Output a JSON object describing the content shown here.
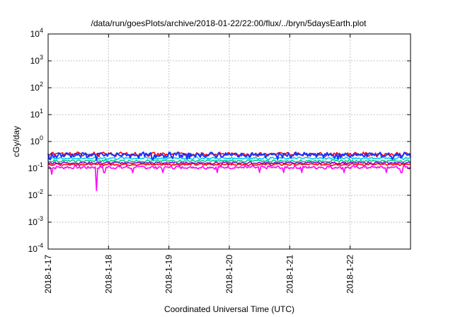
{
  "chart_data": {
    "type": "line",
    "title": "/data/run/goesPlots/archive/2018-01-22/22:00/flux/../bryn/5daysEarth.plot",
    "xlabel": "Coordinated Universal Time (UTC)",
    "ylabel": "cGy/day",
    "x_range_days": [
      "2018-1-17",
      "2018-1-23"
    ],
    "ylim": [
      0.0001,
      10000
    ],
    "yscale": "log",
    "grid": true,
    "legend": "none",
    "x_ticks": [
      "2018-1-17",
      "2018-1-18",
      "2018-1-19",
      "2018-1-20",
      "2018-1-21",
      "2018-1-22"
    ],
    "y_ticks": [
      {
        "base": "10",
        "exp": "4"
      },
      {
        "base": "10",
        "exp": "3"
      },
      {
        "base": "10",
        "exp": "2"
      },
      {
        "base": "10",
        "exp": "1"
      },
      {
        "base": "10",
        "exp": "0"
      },
      {
        "base": "10",
        "exp": "-1"
      },
      {
        "base": "10",
        "exp": "-2"
      },
      {
        "base": "10",
        "exp": "-3"
      },
      {
        "base": "10",
        "exp": "-4"
      }
    ],
    "series": [
      {
        "color": "#ff00ff",
        "base": 0.11,
        "amp": 0.012,
        "dips": [
          [
            0.06,
            0.06
          ],
          [
            0.8,
            0.015
          ],
          [
            0.93,
            0.07
          ],
          [
            1.4,
            0.07
          ],
          [
            1.9,
            0.07
          ],
          [
            2.8,
            0.07
          ],
          [
            3.5,
            0.07
          ],
          [
            3.9,
            0.07
          ],
          [
            4.2,
            0.07
          ],
          [
            4.9,
            0.07
          ],
          [
            5.6,
            0.07
          ],
          [
            5.85,
            0.07
          ]
        ]
      },
      {
        "color": "#ff0000",
        "base": 0.14,
        "amp": 0.01,
        "dips": []
      },
      {
        "color": "#8800cc",
        "base": 0.16,
        "amp": 0.012,
        "dips": []
      },
      {
        "color": "#00cc88",
        "base": 0.19,
        "amp": 0.015,
        "dips": []
      },
      {
        "color": "#00ccee",
        "base": 0.24,
        "amp": 0.02,
        "dips": []
      },
      {
        "color": "#ff0000",
        "base": 0.34,
        "amp": 0.05,
        "dips": []
      },
      {
        "color": "#1a33ff",
        "base": 0.32,
        "amp": 0.06,
        "dips": [
          [
            0.03,
            0.22
          ],
          [
            0.8,
            0.2
          ],
          [
            1.73,
            0.22
          ],
          [
            2.3,
            0.22
          ],
          [
            3.8,
            0.22
          ],
          [
            4.8,
            0.22
          ],
          [
            5.7,
            0.22
          ]
        ]
      }
    ]
  },
  "colors": {
    "axis": "#000000",
    "grid": "#b0b0b0",
    "background": "#ffffff"
  }
}
